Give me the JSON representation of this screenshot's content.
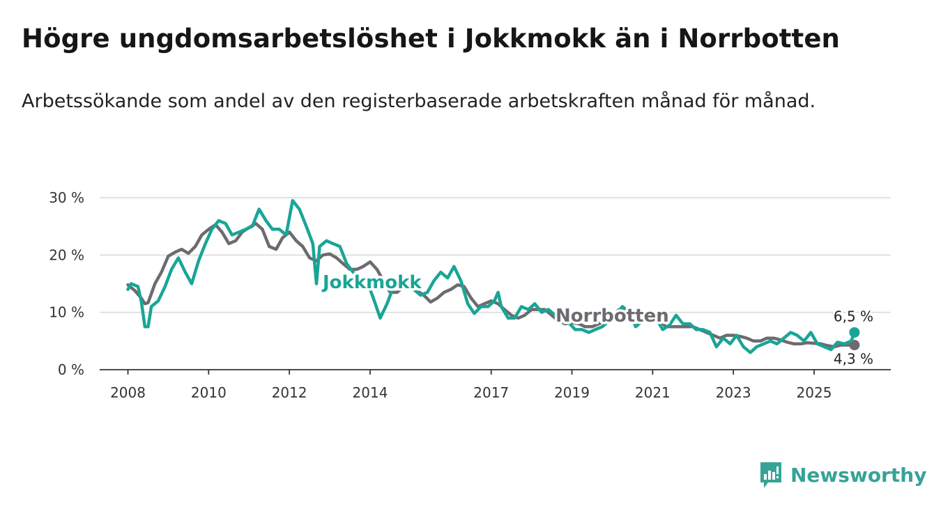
{
  "header": {
    "title": "Högre ungdomsarbetslöshet i Jokkmokk än i Norrbotten",
    "subtitle": "Arbetssökande som andel av den registerbaserade arbetskraften månad för månad."
  },
  "brand": {
    "name": "Newsworthy",
    "icon": "newsworthy-logo-icon",
    "color": "#36a397"
  },
  "chart_data": {
    "type": "line",
    "title": "Högre ungdomsarbetslöshet i Jokkmokk än i Norrbotten",
    "xlabel": "",
    "ylabel": "",
    "ylim": [
      0,
      30
    ],
    "xlim": [
      2007.3,
      2026.9
    ],
    "y_ticks": [
      0,
      10,
      20,
      30
    ],
    "y_tick_labels": [
      "0 %",
      "10 %",
      "20 %",
      "30 %"
    ],
    "x_ticks": [
      2008,
      2010,
      2012,
      2014,
      2017,
      2019,
      2021,
      2023,
      2025
    ],
    "x_tick_labels": [
      "2008",
      "2010",
      "2012",
      "2014",
      "2017",
      "2019",
      "2021",
      "2023",
      "2025"
    ],
    "grid": true,
    "series": [
      {
        "name": "Norrbotten",
        "color": "#6d6a70",
        "label": "Norrbotten",
        "end_label": "4,3 %",
        "points": [
          [
            2008.0,
            14.8
          ],
          [
            2008.17,
            13.8
          ],
          [
            2008.33,
            12.5
          ],
          [
            2008.42,
            11.5
          ],
          [
            2008.5,
            11.7
          ],
          [
            2008.67,
            15.0
          ],
          [
            2008.83,
            17.0
          ],
          [
            2009.0,
            19.8
          ],
          [
            2009.17,
            20.5
          ],
          [
            2009.33,
            21.0
          ],
          [
            2009.5,
            20.3
          ],
          [
            2009.67,
            21.5
          ],
          [
            2009.83,
            23.5
          ],
          [
            2010.0,
            24.5
          ],
          [
            2010.17,
            25.3
          ],
          [
            2010.33,
            24.0
          ],
          [
            2010.5,
            22.0
          ],
          [
            2010.67,
            22.5
          ],
          [
            2010.83,
            24.0
          ],
          [
            2011.0,
            24.8
          ],
          [
            2011.17,
            25.5
          ],
          [
            2011.33,
            24.5
          ],
          [
            2011.5,
            21.5
          ],
          [
            2011.67,
            21.0
          ],
          [
            2011.83,
            23.0
          ],
          [
            2012.0,
            24.0
          ],
          [
            2012.17,
            22.5
          ],
          [
            2012.33,
            21.5
          ],
          [
            2012.5,
            19.5
          ],
          [
            2012.67,
            19.0
          ],
          [
            2012.83,
            20.0
          ],
          [
            2013.0,
            20.2
          ],
          [
            2013.17,
            19.5
          ],
          [
            2013.33,
            18.5
          ],
          [
            2013.5,
            17.5
          ],
          [
            2013.67,
            17.5
          ],
          [
            2013.83,
            18.0
          ],
          [
            2014.0,
            18.8
          ],
          [
            2014.17,
            17.5
          ],
          [
            2014.33,
            15.5
          ],
          [
            2014.5,
            13.5
          ],
          [
            2014.67,
            13.5
          ],
          [
            2014.83,
            14.5
          ],
          [
            2015.0,
            14.5
          ],
          [
            2015.33,
            13.0
          ],
          [
            2015.5,
            11.8
          ],
          [
            2015.67,
            12.5
          ],
          [
            2015.83,
            13.5
          ],
          [
            2016.0,
            14.0
          ],
          [
            2016.17,
            14.8
          ],
          [
            2016.33,
            14.5
          ],
          [
            2016.5,
            12.5
          ],
          [
            2016.67,
            11.0
          ],
          [
            2016.83,
            11.5
          ],
          [
            2017.0,
            12.0
          ],
          [
            2017.17,
            11.5
          ],
          [
            2017.33,
            10.5
          ],
          [
            2017.5,
            9.5
          ],
          [
            2017.67,
            9.0
          ],
          [
            2017.83,
            9.5
          ],
          [
            2018.0,
            10.5
          ],
          [
            2018.17,
            10.5
          ],
          [
            2018.33,
            10.5
          ],
          [
            2018.5,
            9.5
          ],
          [
            2018.67,
            8.5
          ],
          [
            2018.83,
            8.0
          ],
          [
            2019.0,
            8.2
          ],
          [
            2019.17,
            8.0
          ],
          [
            2019.33,
            7.5
          ],
          [
            2019.5,
            7.5
          ],
          [
            2019.67,
            8.0
          ],
          [
            2019.83,
            8.5
          ],
          [
            2020.0,
            9.5
          ],
          [
            2020.17,
            10.5
          ],
          [
            2020.33,
            10.5
          ],
          [
            2020.5,
            9.0
          ],
          [
            2020.67,
            8.5
          ],
          [
            2020.83,
            9.0
          ],
          [
            2021.0,
            9.0
          ],
          [
            2021.17,
            8.5
          ],
          [
            2021.33,
            7.5
          ],
          [
            2021.5,
            7.5
          ],
          [
            2021.67,
            7.5
          ],
          [
            2021.83,
            7.5
          ],
          [
            2022.0,
            7.5
          ],
          [
            2022.17,
            7.0
          ],
          [
            2022.33,
            6.5
          ],
          [
            2022.5,
            6.0
          ],
          [
            2022.67,
            5.5
          ],
          [
            2022.83,
            6.0
          ],
          [
            2023.0,
            6.0
          ],
          [
            2023.17,
            5.8
          ],
          [
            2023.33,
            5.5
          ],
          [
            2023.5,
            5.0
          ],
          [
            2023.67,
            5.0
          ],
          [
            2023.83,
            5.5
          ],
          [
            2024.0,
            5.5
          ],
          [
            2024.17,
            5.2
          ],
          [
            2024.33,
            4.8
          ],
          [
            2024.5,
            4.5
          ],
          [
            2024.67,
            4.5
          ],
          [
            2024.83,
            4.7
          ],
          [
            2025.0,
            4.6
          ],
          [
            2025.17,
            4.5
          ],
          [
            2025.33,
            4.2
          ],
          [
            2025.5,
            4.0
          ],
          [
            2025.67,
            4.3
          ],
          [
            2025.83,
            4.3
          ],
          [
            2026.0,
            4.3
          ]
        ]
      },
      {
        "name": "Jokkmokk",
        "color": "#19a596",
        "label": "Jokkmokk",
        "end_label": "6,5 %",
        "points": [
          [
            2008.0,
            14.0
          ],
          [
            2008.08,
            15.0
          ],
          [
            2008.25,
            14.5
          ],
          [
            2008.33,
            12.0
          ],
          [
            2008.42,
            7.5
          ],
          [
            2008.5,
            7.5
          ],
          [
            2008.58,
            11.0
          ],
          [
            2008.75,
            12.0
          ],
          [
            2008.92,
            14.5
          ],
          [
            2009.08,
            17.5
          ],
          [
            2009.25,
            19.5
          ],
          [
            2009.42,
            17.0
          ],
          [
            2009.58,
            15.0
          ],
          [
            2009.75,
            19.0
          ],
          [
            2009.92,
            22.0
          ],
          [
            2010.08,
            24.5
          ],
          [
            2010.25,
            26.0
          ],
          [
            2010.42,
            25.5
          ],
          [
            2010.58,
            23.5
          ],
          [
            2010.75,
            24.0
          ],
          [
            2010.92,
            24.5
          ],
          [
            2011.08,
            25.0
          ],
          [
            2011.25,
            28.0
          ],
          [
            2011.42,
            26.0
          ],
          [
            2011.58,
            24.5
          ],
          [
            2011.75,
            24.5
          ],
          [
            2011.92,
            23.5
          ],
          [
            2012.08,
            29.5
          ],
          [
            2012.25,
            28.0
          ],
          [
            2012.42,
            25.0
          ],
          [
            2012.58,
            22.0
          ],
          [
            2012.67,
            15.0
          ],
          [
            2012.75,
            21.5
          ],
          [
            2012.92,
            22.5
          ],
          [
            2013.08,
            22.0
          ],
          [
            2013.25,
            21.5
          ],
          [
            2013.42,
            18.5
          ],
          [
            2013.58,
            17.0
          ],
          [
            2013.75,
            16.0
          ],
          [
            2013.92,
            15.5
          ],
          [
            2014.08,
            12.5
          ],
          [
            2014.25,
            9.0
          ],
          [
            2014.42,
            11.5
          ],
          [
            2014.58,
            14.5
          ],
          [
            2014.75,
            15.5
          ],
          [
            2014.92,
            15.5
          ],
          [
            2015.08,
            14.0
          ],
          [
            2015.25,
            13.0
          ],
          [
            2015.42,
            13.5
          ],
          [
            2015.58,
            15.5
          ],
          [
            2015.75,
            17.0
          ],
          [
            2015.92,
            16.0
          ],
          [
            2016.08,
            18.0
          ],
          [
            2016.25,
            15.5
          ],
          [
            2016.42,
            11.5
          ],
          [
            2016.58,
            9.8
          ],
          [
            2016.75,
            11.0
          ],
          [
            2016.92,
            11.0
          ],
          [
            2017.08,
            12.0
          ],
          [
            2017.17,
            13.5
          ],
          [
            2017.25,
            11.0
          ],
          [
            2017.42,
            9.0
          ],
          [
            2017.58,
            9.0
          ],
          [
            2017.75,
            11.0
          ],
          [
            2017.92,
            10.5
          ],
          [
            2018.08,
            11.5
          ],
          [
            2018.25,
            10.0
          ],
          [
            2018.42,
            10.5
          ],
          [
            2018.58,
            9.5
          ],
          [
            2018.75,
            8.5
          ],
          [
            2018.92,
            8.2
          ],
          [
            2019.08,
            7.0
          ],
          [
            2019.25,
            7.0
          ],
          [
            2019.42,
            6.5
          ],
          [
            2019.58,
            7.0
          ],
          [
            2019.75,
            7.5
          ],
          [
            2019.92,
            8.5
          ],
          [
            2020.08,
            9.5
          ],
          [
            2020.25,
            11.0
          ],
          [
            2020.42,
            10.0
          ],
          [
            2020.58,
            7.5
          ],
          [
            2020.75,
            8.5
          ],
          [
            2020.92,
            9.5
          ],
          [
            2021.08,
            9.0
          ],
          [
            2021.25,
            7.0
          ],
          [
            2021.42,
            7.8
          ],
          [
            2021.58,
            9.5
          ],
          [
            2021.75,
            8.0
          ],
          [
            2021.92,
            8.0
          ],
          [
            2022.08,
            7.0
          ],
          [
            2022.25,
            7.0
          ],
          [
            2022.42,
            6.5
          ],
          [
            2022.58,
            4.0
          ],
          [
            2022.75,
            5.5
          ],
          [
            2022.92,
            4.5
          ],
          [
            2023.08,
            6.0
          ],
          [
            2023.25,
            4.0
          ],
          [
            2023.42,
            3.0
          ],
          [
            2023.58,
            4.0
          ],
          [
            2023.75,
            4.5
          ],
          [
            2023.92,
            5.0
          ],
          [
            2024.08,
            4.5
          ],
          [
            2024.25,
            5.5
          ],
          [
            2024.42,
            6.5
          ],
          [
            2024.58,
            6.0
          ],
          [
            2024.75,
            5.0
          ],
          [
            2024.92,
            6.5
          ],
          [
            2025.08,
            4.5
          ],
          [
            2025.25,
            4.0
          ],
          [
            2025.42,
            3.5
          ],
          [
            2025.58,
            4.8
          ],
          [
            2025.75,
            4.5
          ],
          [
            2025.92,
            5.0
          ],
          [
            2026.0,
            6.5
          ]
        ]
      }
    ],
    "annotations": [
      {
        "text": "Jokkmokk",
        "series": "Jokkmokk"
      },
      {
        "text": "Norrbotten",
        "series": "Norrbotten"
      },
      {
        "text": "6,5 %",
        "series": "Jokkmokk"
      },
      {
        "text": "4,3 %",
        "series": "Norrbotten"
      }
    ]
  }
}
